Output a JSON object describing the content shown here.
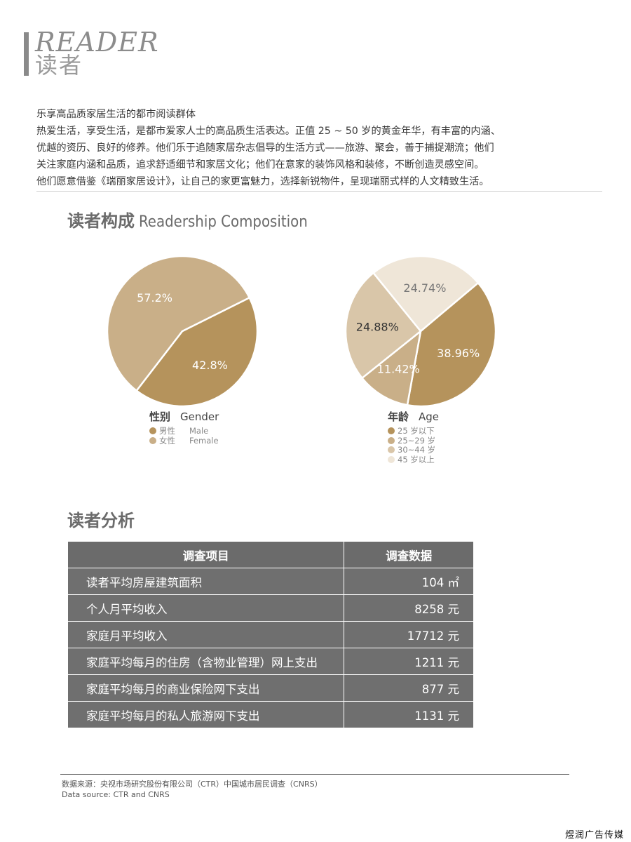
{
  "header": {
    "title_en": "READER",
    "title_cn": "读者"
  },
  "intro": {
    "lines": [
      "乐享高品质家居生活的都市阅读群体",
      "热爱生活，享受生活，是都市爱家人士的高品质生活表达。正值 25 ~ 50 岁的黄金年华，有丰富的内涵、",
      "优越的资历、良好的修养。他们乐于追随家居杂志倡导的生活方式——旅游、聚会，善于捕捉潮流；他们",
      "关注家庭内涵和品质，追求舒适细节和家居文化；他们在意家的装饰风格和装修，不断创造灵感空间。",
      "他们愿意借鉴《瑞丽家居设计》，让自己的家更富魅力，选择新锐物件，呈现瑞丽式样的人文精致生活。"
    ]
  },
  "composition": {
    "title_cn": "读者构成",
    "title_en": "Readership Composition"
  },
  "chart_data": [
    {
      "type": "pie",
      "title": "性别 Gender",
      "title_cn": "性别",
      "title_en": "Gender",
      "labels": [
        "男性 Male",
        "女性 Female"
      ],
      "labels_cn": [
        "男性",
        "女性"
      ],
      "labels_en": [
        "Male",
        "Female"
      ],
      "values": [
        42.8,
        57.2
      ],
      "value_labels": [
        "42.8%",
        "57.2%"
      ],
      "colors": [
        "#b5935c",
        "#c9af88"
      ],
      "legend": "bottom"
    },
    {
      "type": "pie",
      "title": "年龄 Age",
      "title_cn": "年龄",
      "title_en": "Age",
      "labels": [
        "25 岁以下",
        "25~29 岁",
        "30~44 岁",
        "45 岁以上"
      ],
      "values": [
        38.96,
        11.42,
        24.88,
        24.74
      ],
      "value_labels": [
        "38.96%",
        "11.42%",
        "24.88%",
        "24.74%"
      ],
      "colors": [
        "#b5935c",
        "#c9af88",
        "#d9c6a9",
        "#efe6d8"
      ],
      "legend": "bottom"
    }
  ],
  "analysis": {
    "title": "读者分析",
    "headers": [
      "调查项目",
      "调查数据"
    ],
    "rows": [
      [
        "读者平均房屋建筑面积",
        "104 ㎡"
      ],
      [
        "个人月平均收入",
        "8258 元"
      ],
      [
        "家庭月平均收入",
        "17712 元"
      ],
      [
        "家庭平均每月的住房（含物业管理）网上支出",
        "1211 元"
      ],
      [
        "家庭平均每月的商业保险网下支出",
        "877 元"
      ],
      [
        "家庭平均每月的私人旅游网下支出",
        "1131 元"
      ]
    ]
  },
  "footer": {
    "source_cn": "数据来源：央视市场研究股份有限公司（CTR）中国城市居民调查（CNRS）",
    "source_en": "Data source: CTR and CNRS",
    "brand": "煜润广告传媒"
  }
}
